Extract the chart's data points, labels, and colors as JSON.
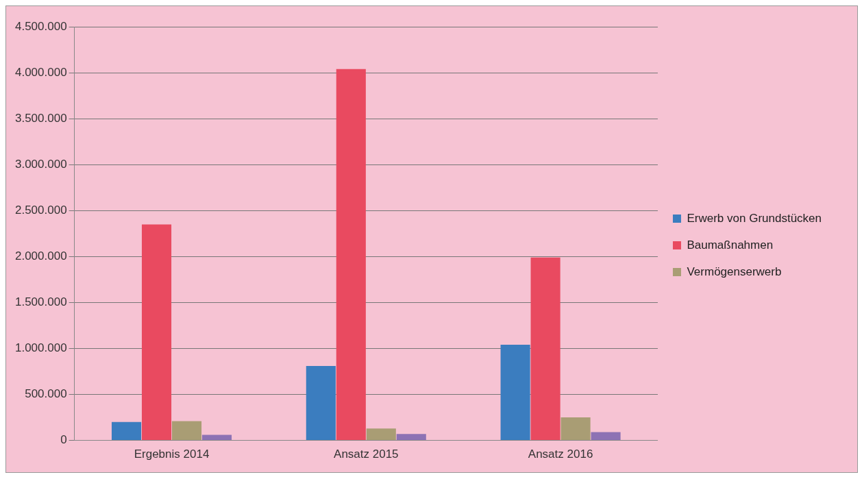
{
  "chart_data": {
    "type": "bar",
    "categories": [
      "Ergebnis 2014",
      "Ansatz 2015",
      "Ansatz 2016"
    ],
    "series": [
      {
        "name": "Erwerb von Grundstücken",
        "color": "#3b7dbf",
        "values": [
          200000,
          810000,
          1040000
        ]
      },
      {
        "name": "Baumaßnahmen",
        "color": "#e94a60",
        "values": [
          2350000,
          4040000,
          1990000
        ]
      },
      {
        "name": "Vermögenserwerb",
        "color": "#a99d74",
        "values": [
          210000,
          130000,
          250000
        ]
      },
      {
        "color": "#8d72b4",
        "values": [
          60000,
          70000,
          90000
        ]
      }
    ],
    "ylim": [
      0,
      4500000
    ],
    "yticks": [
      {
        "value": 0,
        "label": "0"
      },
      {
        "value": 500000,
        "label": "500.000"
      },
      {
        "value": 1000000,
        "label": "1.000.000"
      },
      {
        "value": 1500000,
        "label": "1.500.000"
      },
      {
        "value": 2000000,
        "label": "2.000.000"
      },
      {
        "value": 2500000,
        "label": "2.500.000"
      },
      {
        "value": 3000000,
        "label": "3.000.000"
      },
      {
        "value": 3500000,
        "label": "3.500.000"
      },
      {
        "value": 4000000,
        "label": "4.000.000"
      },
      {
        "value": 4500000,
        "label": "4.500.000"
      }
    ],
    "grid": "y",
    "legend": "right"
  }
}
